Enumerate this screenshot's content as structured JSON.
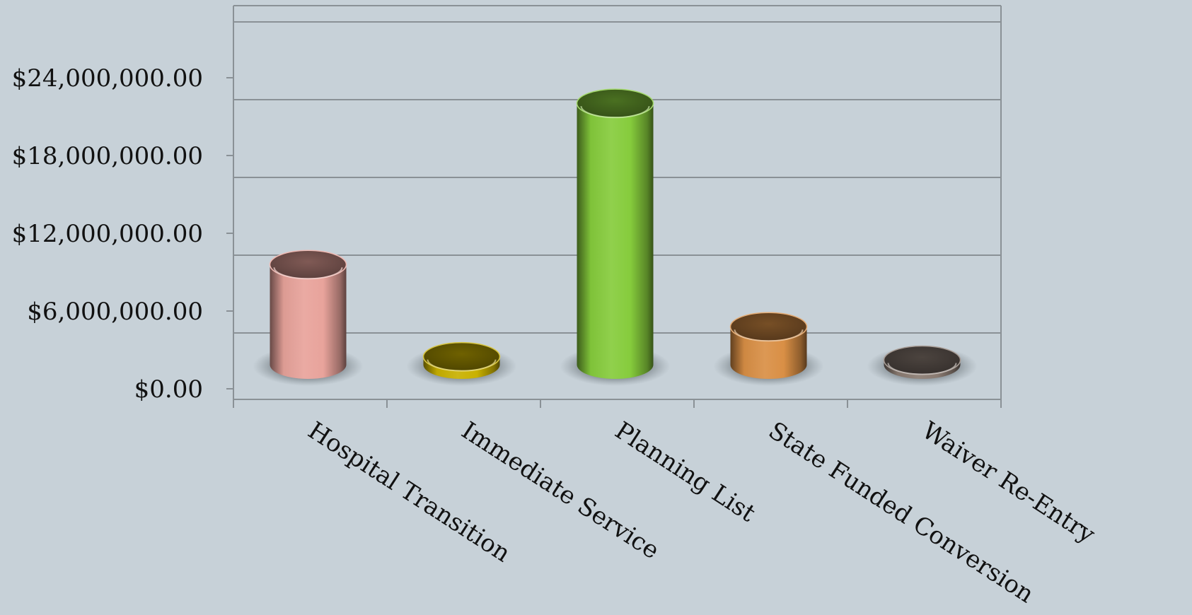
{
  "chart_data": {
    "type": "bar",
    "style": "3d-cylinder",
    "title": "",
    "xlabel": "",
    "ylabel": "",
    "categories": [
      "Hospital Transition",
      "Immediate Service",
      "Planning List",
      "State Funded Conversion",
      "Waiver Re-Entry"
    ],
    "values": [
      8700000,
      700000,
      22700000,
      3300000,
      400000
    ],
    "ylim": [
      0,
      24000000
    ],
    "y_ticks": [
      0,
      6000000,
      12000000,
      18000000,
      24000000
    ],
    "y_tick_labels": [
      "$0.00",
      "$6,000,000.00",
      "$12,000,000.00",
      "$18,000,000.00",
      "$24,000,000.00"
    ],
    "grid": true,
    "legend": "none",
    "colors": [
      "#e8a39b",
      "#c9b100",
      "#86cc3c",
      "#d98f45",
      "#8a7b72"
    ]
  }
}
